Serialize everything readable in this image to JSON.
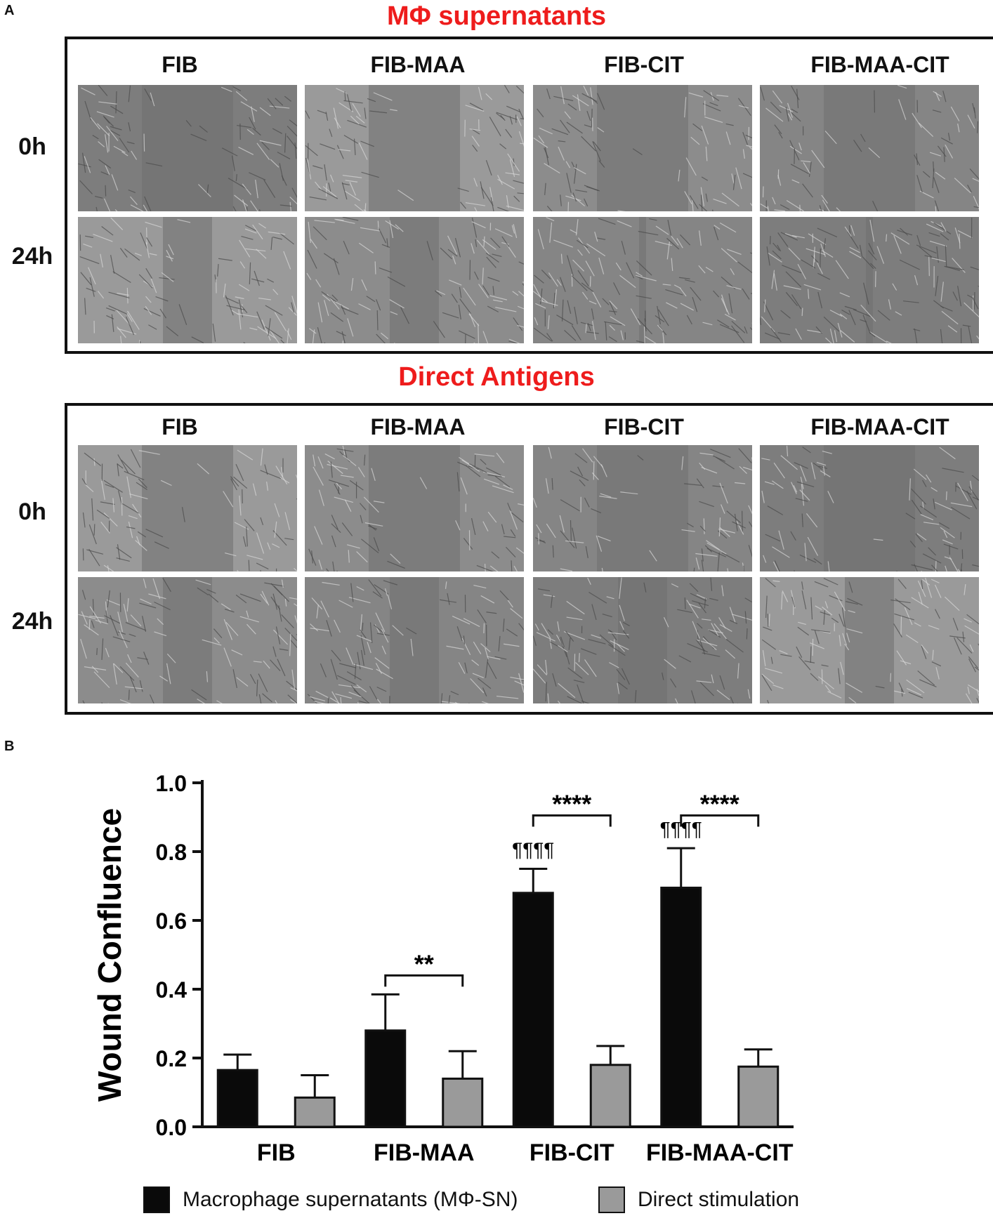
{
  "panel_a": {
    "letter": "A",
    "sections": [
      {
        "title": "MΦ supernatants",
        "columns": [
          "FIB",
          "FIB-MAA",
          "FIB-CIT",
          "FIB-MAA-CIT"
        ],
        "rows": [
          "0h",
          "24h"
        ]
      },
      {
        "title": "Direct Antigens",
        "columns": [
          "FIB",
          "FIB-MAA",
          "FIB-CIT",
          "FIB-MAA-CIT"
        ],
        "rows": [
          "0h",
          "24h"
        ]
      }
    ]
  },
  "panel_b": {
    "letter": "B"
  },
  "colors": {
    "title_red": "#ee1c1c",
    "series_black": "#0a0a0a",
    "series_gray": "#9a9a9a"
  },
  "chart_data": {
    "type": "bar",
    "categories": [
      "FIB",
      "FIB-MAA",
      "FIB-CIT",
      "FIB-MAA-CIT"
    ],
    "series": [
      {
        "name": "Macrophage supernatants (MΦ-SN)",
        "values": [
          0.165,
          0.28,
          0.68,
          0.695
        ],
        "errors": [
          0.045,
          0.105,
          0.07,
          0.115
        ],
        "color": "#0a0a0a"
      },
      {
        "name": "Direct stimulation",
        "values": [
          0.085,
          0.14,
          0.18,
          0.175
        ],
        "errors": [
          0.065,
          0.08,
          0.055,
          0.05
        ],
        "color": "#9a9a9a"
      }
    ],
    "ylabel": "Wound Confluence",
    "xlabel": "",
    "ylim": [
      0,
      1.0
    ],
    "yticks": [
      "0.0",
      "0.2",
      "0.4",
      "0.6",
      "0.8",
      "1.0"
    ],
    "annotations": [
      {
        "category": "FIB-MAA",
        "bracket": "**"
      },
      {
        "category": "FIB-CIT",
        "bracket": "****",
        "above_black": "¶¶¶¶"
      },
      {
        "category": "FIB-MAA-CIT",
        "bracket": "****",
        "above_black": "¶¶¶¶"
      }
    ],
    "legend_position": "bottom"
  }
}
